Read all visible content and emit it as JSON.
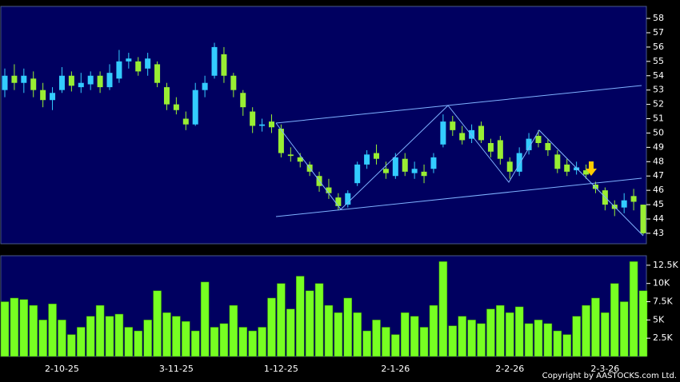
{
  "chart_data": [
    {
      "type": "candlestick",
      "categories": [
        null,
        null,
        null,
        null,
        null,
        null,
        "2-10-25",
        null,
        null,
        null,
        null,
        null,
        null,
        null,
        null,
        null,
        null,
        null,
        "3-11-25",
        null,
        null,
        null,
        null,
        null,
        null,
        null,
        null,
        null,
        null,
        "1-12-25",
        null,
        null,
        null,
        null,
        null,
        null,
        null,
        null,
        null,
        null,
        null,
        "2-1-26",
        null,
        null,
        null,
        null,
        null,
        null,
        null,
        null,
        null,
        null,
        null,
        "2-2-26",
        null,
        null,
        null,
        null,
        null,
        null,
        null,
        null,
        null,
        "2-3-26",
        null,
        null,
        null,
        null
      ],
      "open": [
        53,
        54,
        53.5,
        53.8,
        53,
        52.3,
        53,
        54,
        53.2,
        53.4,
        54,
        53.2,
        53.8,
        55,
        55,
        54.5,
        54.8,
        53.2,
        52,
        51,
        50.6,
        53,
        54,
        55.5,
        54,
        52.8,
        51.5,
        50.5,
        50.8,
        50.3,
        48.5,
        48.3,
        47.8,
        47,
        46.2,
        45.5,
        45,
        46.5,
        47.8,
        48.6,
        47.5,
        47,
        48.2,
        47.2,
        47.3,
        47.5,
        49.2,
        50.8,
        50,
        49.6,
        50.5,
        49.3,
        49.5,
        48,
        47.3,
        48.8,
        49.8,
        49.3,
        48.5,
        47.8,
        47.4,
        47.4,
        46.4,
        46,
        45,
        44.8,
        45.6,
        45
      ],
      "high": [
        54.5,
        54.8,
        54.5,
        54.3,
        53.5,
        53.2,
        54.6,
        54.3,
        54.2,
        54.3,
        54.3,
        54.8,
        55.8,
        55.6,
        55.3,
        55.6,
        55,
        53.5,
        52.5,
        51.5,
        53.5,
        54,
        56.3,
        56,
        54.2,
        53,
        51.8,
        51,
        51.3,
        50.6,
        49,
        48.6,
        48,
        47.3,
        46.8,
        45.8,
        46,
        48,
        48.8,
        49.2,
        48,
        48.6,
        48.6,
        48,
        47.8,
        48.6,
        51.3,
        51.2,
        50.5,
        50.6,
        50.8,
        49.6,
        49.8,
        48.3,
        49,
        50,
        50.2,
        49.6,
        48.8,
        48.2,
        48,
        47.8,
        46.6,
        46.2,
        45.3,
        45.8,
        46.1,
        45
      ],
      "low": [
        52.5,
        53,
        52.8,
        52.5,
        51.8,
        51.6,
        52.8,
        52.9,
        52.8,
        53,
        52.8,
        53,
        53.5,
        54.5,
        54,
        54,
        53.2,
        51.6,
        51.3,
        50.2,
        50.5,
        52.5,
        53.8,
        53.5,
        52.5,
        51.2,
        50,
        50.1,
        50,
        48.3,
        48,
        47.6,
        47,
        45.9,
        45.4,
        44.6,
        44.8,
        46.3,
        47.5,
        47.8,
        46.8,
        46.8,
        47,
        46.8,
        46.5,
        47.2,
        49,
        49.8,
        49.2,
        49.3,
        49.3,
        48.3,
        47.8,
        46.8,
        47,
        48.5,
        49,
        48.4,
        47.2,
        47,
        47.1,
        46.8,
        45.8,
        44.6,
        44.2,
        44.4,
        44.6,
        42.9
      ],
      "close": [
        54,
        53.5,
        54,
        53,
        52.3,
        52.8,
        54,
        53.3,
        53.5,
        54,
        53.2,
        54.2,
        55,
        55.2,
        54.3,
        55.2,
        53.5,
        52,
        51.6,
        50.6,
        53,
        53.5,
        56,
        54,
        53,
        51.8,
        50.5,
        50.6,
        50.4,
        48.6,
        48.4,
        48,
        47.3,
        46.3,
        45.8,
        44.9,
        45.8,
        47.8,
        48.5,
        48.2,
        47.2,
        48.3,
        47.3,
        47.5,
        47,
        48.3,
        50.8,
        50.2,
        49.5,
        50.2,
        49.5,
        48.7,
        48.2,
        47.3,
        48.6,
        49.6,
        49.3,
        48.8,
        47.5,
        47.3,
        47.6,
        47.1,
        46.1,
        45,
        44.7,
        45.3,
        45.2,
        43
      ],
      "up_color": "#33ccff",
      "down_color": "#99ee33",
      "ylim": [
        42.27,
        58.84
      ],
      "yticks": [
        43,
        44,
        45,
        46,
        47,
        48,
        49,
        50,
        51,
        52,
        53,
        54,
        55,
        56,
        57,
        58
      ]
    },
    {
      "type": "bar",
      "values": [
        7.5,
        8,
        7.8,
        7,
        5,
        7.2,
        5,
        3,
        4,
        5.5,
        7,
        5.5,
        5.8,
        4,
        3.5,
        5,
        9,
        6,
        5.5,
        4.8,
        3.5,
        10.2,
        4,
        4.5,
        7,
        4,
        3.5,
        4,
        8,
        10,
        6.5,
        11,
        9,
        10,
        7,
        6,
        8,
        6,
        3.5,
        5,
        4,
        3,
        6,
        5.5,
        4,
        7,
        13,
        4.2,
        5.5,
        5,
        4.5,
        6.5,
        7,
        6,
        6.8,
        4.5,
        5,
        4.5,
        3.5,
        3,
        5.5,
        7,
        8,
        6,
        10,
        7.5,
        13,
        9
      ],
      "color": "#77ff22",
      "ylim": [
        0,
        13.8
      ],
      "yticks": [
        {
          "value": 2.5,
          "label": "2.5K"
        },
        {
          "value": 5,
          "label": "5K"
        },
        {
          "value": 7.5,
          "label": "7.5K"
        },
        {
          "value": 10,
          "label": "10K"
        },
        {
          "value": 12.5,
          "label": "12.5K"
        }
      ]
    }
  ],
  "copyright": "Copyright by AASTOCKS.com Ltd."
}
